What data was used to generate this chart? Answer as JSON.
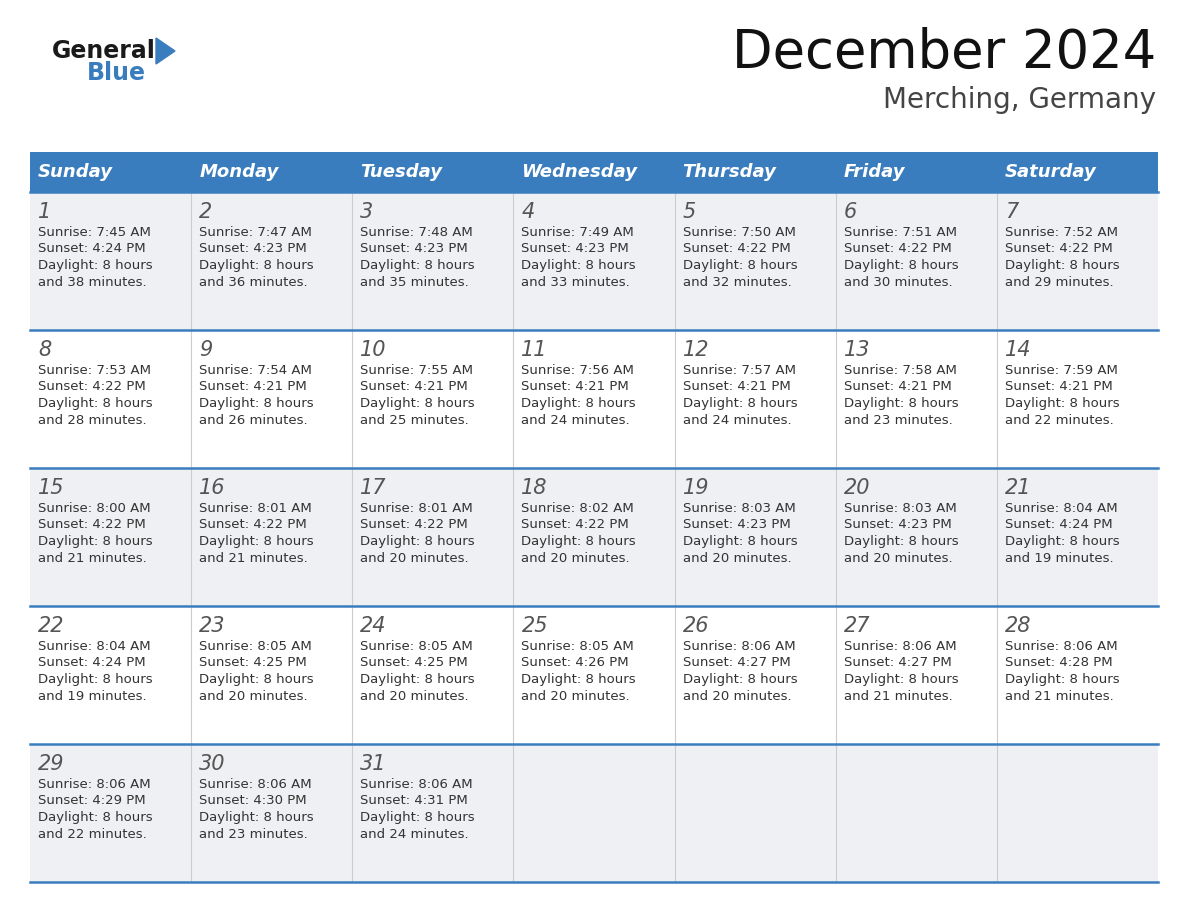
{
  "title": "December 2024",
  "subtitle": "Merching, Germany",
  "header_bg_color": "#3a7dbf",
  "header_text_color": "#ffffff",
  "day_names": [
    "Sunday",
    "Monday",
    "Tuesday",
    "Wednesday",
    "Thursday",
    "Friday",
    "Saturday"
  ],
  "cell_bg_white": "#ffffff",
  "cell_bg_gray": "#eef0f3",
  "border_color": "#3a7dbf",
  "divider_color": "#cccccc",
  "date_color": "#555555",
  "text_color": "#333333",
  "logo_general_color": "#1a1a1a",
  "logo_blue_color": "#3a7dbf",
  "weeks": [
    [
      {
        "day": 1,
        "sunrise": "7:45 AM",
        "sunset": "4:24 PM",
        "daylight": "8 hours and 38 minutes."
      },
      {
        "day": 2,
        "sunrise": "7:47 AM",
        "sunset": "4:23 PM",
        "daylight": "8 hours and 36 minutes."
      },
      {
        "day": 3,
        "sunrise": "7:48 AM",
        "sunset": "4:23 PM",
        "daylight": "8 hours and 35 minutes."
      },
      {
        "day": 4,
        "sunrise": "7:49 AM",
        "sunset": "4:23 PM",
        "daylight": "8 hours and 33 minutes."
      },
      {
        "day": 5,
        "sunrise": "7:50 AM",
        "sunset": "4:22 PM",
        "daylight": "8 hours and 32 minutes."
      },
      {
        "day": 6,
        "sunrise": "7:51 AM",
        "sunset": "4:22 PM",
        "daylight": "8 hours and 30 minutes."
      },
      {
        "day": 7,
        "sunrise": "7:52 AM",
        "sunset": "4:22 PM",
        "daylight": "8 hours and 29 minutes."
      }
    ],
    [
      {
        "day": 8,
        "sunrise": "7:53 AM",
        "sunset": "4:22 PM",
        "daylight": "8 hours and 28 minutes."
      },
      {
        "day": 9,
        "sunrise": "7:54 AM",
        "sunset": "4:21 PM",
        "daylight": "8 hours and 26 minutes."
      },
      {
        "day": 10,
        "sunrise": "7:55 AM",
        "sunset": "4:21 PM",
        "daylight": "8 hours and 25 minutes."
      },
      {
        "day": 11,
        "sunrise": "7:56 AM",
        "sunset": "4:21 PM",
        "daylight": "8 hours and 24 minutes."
      },
      {
        "day": 12,
        "sunrise": "7:57 AM",
        "sunset": "4:21 PM",
        "daylight": "8 hours and 24 minutes."
      },
      {
        "day": 13,
        "sunrise": "7:58 AM",
        "sunset": "4:21 PM",
        "daylight": "8 hours and 23 minutes."
      },
      {
        "day": 14,
        "sunrise": "7:59 AM",
        "sunset": "4:21 PM",
        "daylight": "8 hours and 22 minutes."
      }
    ],
    [
      {
        "day": 15,
        "sunrise": "8:00 AM",
        "sunset": "4:22 PM",
        "daylight": "8 hours and 21 minutes."
      },
      {
        "day": 16,
        "sunrise": "8:01 AM",
        "sunset": "4:22 PM",
        "daylight": "8 hours and 21 minutes."
      },
      {
        "day": 17,
        "sunrise": "8:01 AM",
        "sunset": "4:22 PM",
        "daylight": "8 hours and 20 minutes."
      },
      {
        "day": 18,
        "sunrise": "8:02 AM",
        "sunset": "4:22 PM",
        "daylight": "8 hours and 20 minutes."
      },
      {
        "day": 19,
        "sunrise": "8:03 AM",
        "sunset": "4:23 PM",
        "daylight": "8 hours and 20 minutes."
      },
      {
        "day": 20,
        "sunrise": "8:03 AM",
        "sunset": "4:23 PM",
        "daylight": "8 hours and 20 minutes."
      },
      {
        "day": 21,
        "sunrise": "8:04 AM",
        "sunset": "4:24 PM",
        "daylight": "8 hours and 19 minutes."
      }
    ],
    [
      {
        "day": 22,
        "sunrise": "8:04 AM",
        "sunset": "4:24 PM",
        "daylight": "8 hours and 19 minutes."
      },
      {
        "day": 23,
        "sunrise": "8:05 AM",
        "sunset": "4:25 PM",
        "daylight": "8 hours and 20 minutes."
      },
      {
        "day": 24,
        "sunrise": "8:05 AM",
        "sunset": "4:25 PM",
        "daylight": "8 hours and 20 minutes."
      },
      {
        "day": 25,
        "sunrise": "8:05 AM",
        "sunset": "4:26 PM",
        "daylight": "8 hours and 20 minutes."
      },
      {
        "day": 26,
        "sunrise": "8:06 AM",
        "sunset": "4:27 PM",
        "daylight": "8 hours and 20 minutes."
      },
      {
        "day": 27,
        "sunrise": "8:06 AM",
        "sunset": "4:27 PM",
        "daylight": "8 hours and 21 minutes."
      },
      {
        "day": 28,
        "sunrise": "8:06 AM",
        "sunset": "4:28 PM",
        "daylight": "8 hours and 21 minutes."
      }
    ],
    [
      {
        "day": 29,
        "sunrise": "8:06 AM",
        "sunset": "4:29 PM",
        "daylight": "8 hours and 22 minutes."
      },
      {
        "day": 30,
        "sunrise": "8:06 AM",
        "sunset": "4:30 PM",
        "daylight": "8 hours and 23 minutes."
      },
      {
        "day": 31,
        "sunrise": "8:06 AM",
        "sunset": "4:31 PM",
        "daylight": "8 hours and 24 minutes."
      },
      null,
      null,
      null,
      null
    ]
  ]
}
